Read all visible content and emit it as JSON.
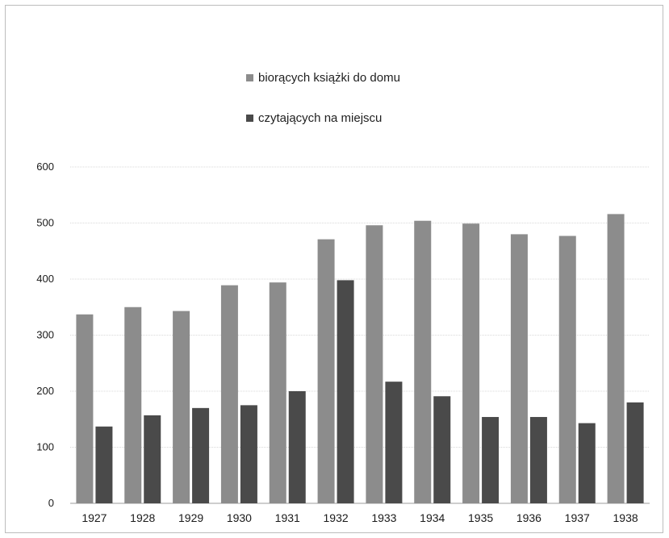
{
  "chart_data": {
    "type": "bar",
    "title": "",
    "xlabel": "",
    "ylabel": "",
    "categories": [
      "1927",
      "1928",
      "1929",
      "1930",
      "1931",
      "1932",
      "1933",
      "1934",
      "1935",
      "1936",
      "1937",
      "1938"
    ],
    "series": [
      {
        "name": "biorących książki do domu",
        "color": "#8c8c8c",
        "values": [
          337,
          350,
          343,
          389,
          394,
          471,
          496,
          504,
          499,
          480,
          477,
          516
        ]
      },
      {
        "name": "czytających na miejscu",
        "color": "#4a4a4a",
        "values": [
          137,
          157,
          170,
          175,
          200,
          398,
          217,
          191,
          154,
          154,
          143,
          180
        ]
      }
    ],
    "ylim": [
      0,
      600
    ],
    "yticks": [
      "0",
      "100",
      "200",
      "300",
      "400",
      "500",
      "600"
    ],
    "grid": true,
    "legend_position": "top-center"
  }
}
